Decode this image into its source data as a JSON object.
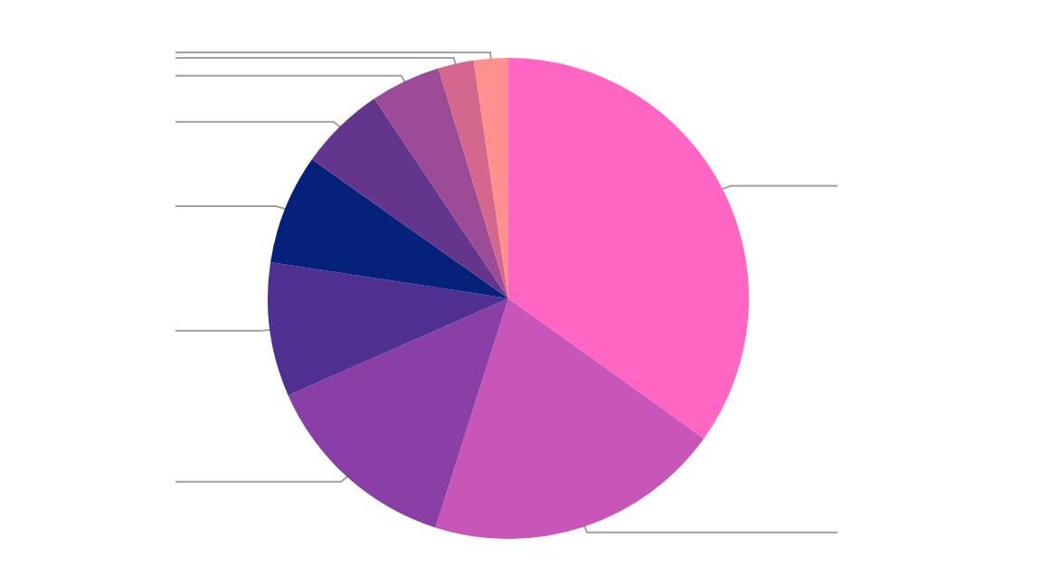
{
  "chart_data": {
    "type": "pie",
    "categories": [
      null,
      null,
      null,
      null,
      null,
      null,
      null,
      null,
      null
    ],
    "values": [
      34.9,
      20,
      13.5,
      9,
      7.4,
      5.8,
      4.7,
      2.4,
      2.3
    ],
    "colors": [
      "#ff66c4",
      "#c855b8",
      "#8a3fa6",
      "#4f2f8f",
      "#06217a",
      "#63358c",
      "#9c4b96",
      "#d3678e",
      "#ff9090"
    ]
  }
}
